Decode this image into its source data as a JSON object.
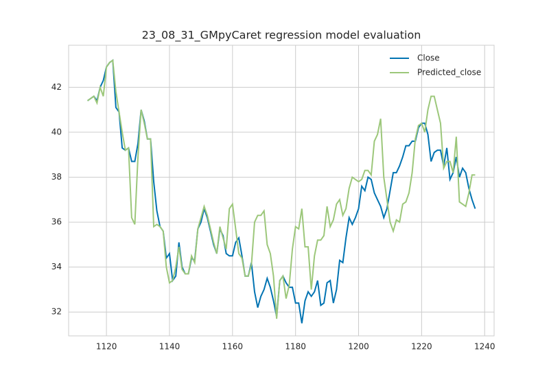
{
  "chart_data": {
    "type": "line",
    "title": "23_08_31_GMpyCaret regression model evaluation",
    "x": [
      1114,
      1115,
      1116,
      1117,
      1118,
      1119,
      1120,
      1121,
      1122,
      1123,
      1124,
      1125,
      1126,
      1127,
      1128,
      1129,
      1130,
      1131,
      1132,
      1133,
      1134,
      1135,
      1136,
      1137,
      1138,
      1139,
      1140,
      1141,
      1142,
      1143,
      1144,
      1145,
      1146,
      1147,
      1148,
      1149,
      1150,
      1151,
      1152,
      1153,
      1154,
      1155,
      1156,
      1157,
      1158,
      1159,
      1160,
      1161,
      1162,
      1163,
      1164,
      1165,
      1166,
      1167,
      1168,
      1169,
      1170,
      1171,
      1172,
      1173,
      1174,
      1175,
      1176,
      1177,
      1178,
      1179,
      1180,
      1181,
      1182,
      1183,
      1184,
      1185,
      1186,
      1187,
      1188,
      1189,
      1190,
      1191,
      1192,
      1193,
      1194,
      1195,
      1196,
      1197,
      1198,
      1199,
      1200,
      1201,
      1202,
      1203,
      1204,
      1205,
      1206,
      1207,
      1208,
      1209,
      1210,
      1211,
      1212,
      1213,
      1214,
      1215,
      1216,
      1217,
      1218,
      1219,
      1220,
      1221,
      1222,
      1223,
      1224,
      1225,
      1226,
      1227,
      1228,
      1229,
      1230,
      1231,
      1232,
      1233,
      1234,
      1235,
      1236,
      1237
    ],
    "series": [
      {
        "name": "Close",
        "color": "#0173b2",
        "values": [
          41.4,
          41.5,
          41.6,
          41.4,
          42.0,
          42.3,
          42.9,
          43.1,
          43.2,
          41.1,
          40.9,
          39.3,
          39.2,
          39.3,
          38.7,
          38.7,
          39.5,
          41.0,
          40.5,
          39.7,
          39.7,
          37.8,
          36.5,
          35.8,
          35.6,
          34.4,
          34.6,
          33.4,
          33.6,
          35.1,
          34.0,
          33.7,
          33.7,
          34.4,
          34.3,
          35.7,
          36.0,
          36.6,
          36.2,
          35.6,
          35.0,
          34.6,
          35.7,
          35.4,
          34.6,
          34.5,
          34.5,
          35.1,
          35.3,
          34.5,
          33.6,
          33.6,
          34.2,
          32.9,
          32.2,
          32.7,
          33.0,
          33.5,
          33.1,
          32.5,
          31.8,
          33.4,
          33.6,
          33.3,
          33.1,
          33.1,
          32.4,
          32.4,
          31.5,
          32.5,
          32.9,
          32.7,
          32.9,
          33.4,
          32.3,
          32.4,
          33.3,
          33.4,
          32.4,
          33.0,
          34.3,
          34.2,
          35.3,
          36.2,
          35.9,
          36.2,
          36.6,
          37.6,
          37.4,
          38.0,
          37.9,
          37.3,
          37.0,
          36.7,
          36.2,
          36.6,
          37.4,
          38.2,
          38.2,
          38.5,
          38.9,
          39.4,
          39.4,
          39.6,
          39.6,
          40.2,
          40.4,
          40.4,
          39.9,
          38.7,
          39.1,
          39.2,
          39.2,
          38.5,
          39.3,
          37.9,
          38.2,
          38.9,
          38.0,
          38.4,
          38.2,
          37.5,
          37.0,
          36.6
        ]
      },
      {
        "name": "Predicted_close",
        "color": "#9cc77a",
        "values": [
          41.4,
          41.5,
          41.6,
          41.3,
          42.0,
          41.6,
          42.9,
          43.1,
          43.2,
          41.8,
          40.9,
          40.0,
          39.2,
          39.3,
          36.2,
          35.9,
          38.9,
          41.0,
          40.4,
          39.7,
          39.7,
          35.8,
          35.9,
          35.8,
          35.6,
          34.0,
          33.3,
          33.4,
          34.0,
          34.9,
          33.9,
          33.7,
          33.7,
          34.5,
          34.2,
          35.7,
          36.2,
          36.7,
          36.3,
          35.7,
          35.1,
          34.6,
          35.8,
          35.3,
          34.8,
          36.6,
          36.8,
          35.7,
          34.6,
          34.4,
          33.6,
          33.6,
          34.1,
          36.0,
          36.3,
          36.3,
          36.5,
          35.0,
          34.6,
          33.6,
          31.7,
          33.4,
          33.6,
          32.6,
          33.2,
          34.8,
          35.8,
          35.7,
          36.6,
          34.9,
          34.9,
          33.0,
          34.5,
          35.2,
          35.2,
          35.4,
          36.7,
          35.8,
          36.1,
          36.8,
          37.0,
          36.3,
          36.6,
          37.5,
          38.0,
          37.9,
          37.8,
          37.9,
          38.3,
          38.3,
          38.1,
          39.6,
          39.9,
          40.6,
          38.0,
          37.0,
          36.0,
          35.6,
          36.1,
          36.0,
          36.8,
          36.9,
          37.3,
          38.2,
          39.7,
          40.3,
          40.4,
          40.0,
          41.0,
          41.6,
          41.6,
          41.0,
          40.4,
          38.4,
          38.7,
          38.7,
          38.2,
          39.8,
          36.9,
          36.8,
          36.7,
          37.3,
          38.1,
          38.1
        ]
      }
    ],
    "xlim": [
      1108,
      1243
    ],
    "xticks": [
      1120,
      1140,
      1160,
      1180,
      1200,
      1220,
      1240
    ],
    "ylim": [
      30.94,
      43.87
    ],
    "yticks": [
      32,
      34,
      36,
      38,
      40,
      42
    ],
    "grid": true,
    "legend": "upper right"
  }
}
